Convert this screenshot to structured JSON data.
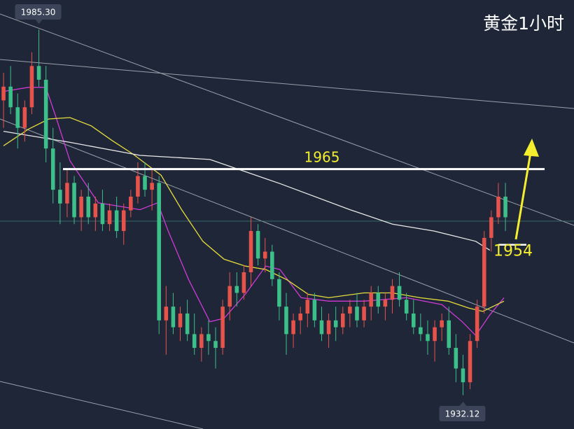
{
  "chart_data": {
    "type": "candlestick",
    "title": "黄金1小时",
    "xlim": [
      -0.5,
      80.7
    ],
    "ylim": [
      1927.2,
      1989.6
    ],
    "up_color": "#e5534b",
    "down_color": "#3dbf8a",
    "open": [
      1975,
      1977,
      1974,
      1971,
      1974,
      1980,
      1978,
      1968,
      1962,
      1960,
      1963,
      1958,
      1961,
      1958,
      1960,
      1957,
      1959,
      1956,
      1959,
      1961,
      1964,
      1962,
      1963,
      1943,
      1945,
      1942,
      1944,
      1941,
      1939,
      1941,
      1940,
      1939,
      1945,
      1948,
      1947,
      1950,
      1956,
      1952,
      1953,
      1949,
      1945,
      1941,
      1943,
      1944,
      1946,
      1943,
      1941,
      1943,
      1942,
      1944,
      1945,
      1943,
      1945,
      1947,
      1945,
      1946,
      1948,
      1946,
      1944,
      1942,
      1941,
      1940,
      1942,
      1943,
      1939,
      1936,
      1934,
      1940,
      1945,
      1955,
      1958,
      1961
    ],
    "high": [
      1979,
      1980,
      1976,
      1975,
      1982,
      1985.3,
      1980,
      1971,
      1966,
      1965,
      1964,
      1962,
      1963,
      1961,
      1962,
      1960,
      1961,
      1960,
      1962,
      1966,
      1966,
      1965,
      1964,
      1948,
      1947,
      1945,
      1946,
      1944,
      1942,
      1943,
      1942,
      1946,
      1950,
      1950,
      1951,
      1958,
      1957,
      1955,
      1954,
      1950,
      1947,
      1944,
      1945,
      1947,
      1947,
      1945,
      1944,
      1945,
      1945,
      1946,
      1947,
      1946,
      1948,
      1948,
      1947,
      1949,
      1950,
      1947,
      1946,
      1944,
      1943,
      1943,
      1944,
      1945,
      1941,
      1938,
      1941,
      1946,
      1956,
      1959,
      1963,
      1963
    ],
    "low": [
      1971,
      1973,
      1968,
      1969,
      1973,
      1977,
      1966,
      1960,
      1957,
      1958,
      1957,
      1956,
      1957,
      1956,
      1956,
      1956,
      1955,
      1954,
      1958,
      1960,
      1961,
      1959,
      1941,
      1938,
      1941,
      1940,
      1940,
      1938,
      1937,
      1938,
      1936,
      1938,
      1943,
      1945,
      1946,
      1948,
      1951,
      1950,
      1948,
      1943,
      1938,
      1939,
      1941,
      1942,
      1942,
      1940,
      1939,
      1940,
      1941,
      1942,
      1942,
      1942,
      1943,
      1944,
      1943,
      1944,
      1945,
      1943,
      1941,
      1940,
      1938,
      1937,
      1940,
      1938,
      1934,
      1932.12,
      1933,
      1939,
      1944,
      1953,
      1957,
      1956
    ],
    "close": [
      1977,
      1974,
      1971,
      1974,
      1980,
      1978,
      1968,
      1962,
      1960,
      1963,
      1958,
      1961,
      1958,
      1960,
      1957,
      1959,
      1956,
      1959,
      1961,
      1964,
      1962,
      1963,
      1943,
      1945,
      1942,
      1944,
      1941,
      1939,
      1941,
      1940,
      1939,
      1945,
      1948,
      1947,
      1950,
      1956,
      1952,
      1953,
      1949,
      1945,
      1941,
      1943,
      1944,
      1946,
      1943,
      1941,
      1943,
      1942,
      1944,
      1945,
      1943,
      1945,
      1947,
      1945,
      1946,
      1948,
      1946,
      1944,
      1942,
      1941,
      1940,
      1942,
      1943,
      1939,
      1936,
      1934,
      1940,
      1945,
      1955,
      1958,
      1961,
      1958
    ],
    "overlays": [
      {
        "color": "#d03ad6",
        "x": [
          0,
          3.5,
          6,
          7.5,
          9.4,
          13.4,
          19.3,
          21.8,
          23.3,
          26.2,
          29.2,
          31.2,
          34.2,
          37.1,
          39.1,
          42.1,
          46,
          51,
          57,
          62,
          64.9,
          66.8,
          68.8,
          70.8
        ],
        "values": [
          1976.3,
          1976.9,
          1976.9,
          1972.3,
          1966.2,
          1960.1,
          1959.1,
          1960.1,
          1956.0,
          1948.9,
          1942.8,
          1943.3,
          1946.8,
          1950.9,
          1950.4,
          1946.3,
          1945.8,
          1945.8,
          1946.3,
          1945.3,
          1942.8,
          1940.8,
          1943.8,
          1946.3
        ]
      },
      {
        "color": "#e6dc3c",
        "x": [
          0,
          3.5,
          6.4,
          9.4,
          12.4,
          15.3,
          18.3,
          22.3,
          25.2,
          28.2,
          31.2,
          34.2,
          37.1,
          40.1,
          43.1,
          46,
          51,
          55,
          58.9,
          62.9,
          65.8,
          67.8,
          70.8
        ],
        "values": [
          1968.4,
          1970.8,
          1972.3,
          1972.5,
          1971.3,
          1969.2,
          1967.2,
          1964.1,
          1959.1,
          1954.5,
          1951.9,
          1950.9,
          1950.4,
          1948.9,
          1946.8,
          1946.3,
          1947.0,
          1947.0,
          1946.3,
          1945.8,
          1944.8,
          1944.3,
          1945.8
        ]
      },
      {
        "color": "#e8e8e8",
        "x": [
          0,
          9.4,
          19.3,
          29.2,
          39.1,
          49,
          55,
          60.9,
          66.8,
          68.8
        ],
        "values": [
          1970.5,
          1968.9,
          1967.0,
          1966.4,
          1962.9,
          1959.1,
          1957.0,
          1956.0,
          1954.5,
          1953.2
        ]
      }
    ],
    "annotations": [
      {
        "label": "1985.30",
        "value": 1985.3,
        "index": 5
      },
      {
        "label": "1932.12",
        "value": 1932.12,
        "index": 65
      }
    ],
    "levels": [
      {
        "value": 1965,
        "label": "1965"
      },
      {
        "value": 1954,
        "label": "1954"
      }
    ]
  }
}
